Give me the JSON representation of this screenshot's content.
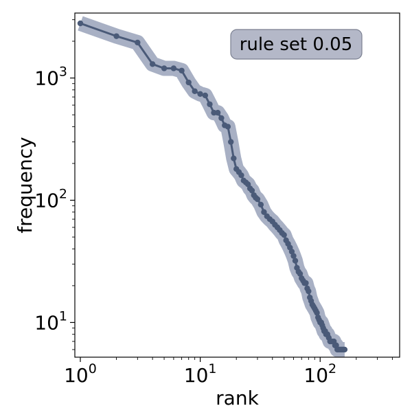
{
  "chart_data": {
    "type": "line",
    "xscale": "log",
    "yscale": "log",
    "xlabel": "rank",
    "ylabel": "frequency",
    "xlim": [
      0.9,
      460
    ],
    "ylim": [
      5.2,
      3400
    ],
    "x_ticks": [
      {
        "value": 1,
        "base": "10",
        "exp": "0"
      },
      {
        "value": 10,
        "base": "10",
        "exp": "1"
      },
      {
        "value": 100,
        "base": "10",
        "exp": "2"
      }
    ],
    "y_ticks": [
      {
        "value": 10,
        "base": "10",
        "exp": "1"
      },
      {
        "value": 100,
        "base": "10",
        "exp": "2"
      },
      {
        "value": 1000,
        "base": "10",
        "exp": "3"
      }
    ],
    "grid": false,
    "annotation": "rule set 0.05",
    "colors": {
      "line": "#4a5a78",
      "halo": "#a8b0c4",
      "box_fill": "#b4b8c8",
      "box_edge": "#7a7f90"
    },
    "series": [
      {
        "x": [
          1,
          2,
          3,
          4,
          5,
          6,
          7,
          8,
          9,
          10,
          11,
          12,
          13,
          14,
          15,
          16,
          17,
          18,
          19,
          20,
          21,
          22,
          23,
          24,
          25,
          26,
          27,
          28,
          29,
          30,
          32,
          34,
          36,
          38,
          40,
          42,
          44,
          46,
          48,
          50,
          52,
          54,
          56,
          58,
          60,
          62,
          64,
          66,
          68,
          70,
          72,
          74,
          76,
          78,
          80,
          82,
          84,
          86,
          88,
          90,
          92,
          94,
          96,
          98,
          100,
          102,
          104,
          106,
          108,
          110,
          112,
          115,
          118,
          121,
          124,
          127,
          130,
          133,
          136,
          139,
          142,
          145,
          148,
          151,
          154,
          157,
          160
        ],
        "y": [
          2800,
          2200,
          1950,
          1300,
          1200,
          1200,
          1150,
          920,
          780,
          740,
          720,
          610,
          520,
          520,
          470,
          410,
          400,
          300,
          220,
          180,
          170,
          160,
          145,
          140,
          135,
          125,
          120,
          110,
          105,
          102,
          92,
          80,
          74,
          70,
          67,
          63,
          60,
          57,
          54,
          52,
          47,
          44,
          41,
          38,
          35,
          32,
          28,
          26,
          25,
          23,
          22,
          21,
          21,
          19,
          18,
          16,
          15,
          14,
          13.5,
          13,
          12.5,
          12,
          11,
          10.5,
          10,
          10,
          9.5,
          9,
          8.5,
          8.5,
          8,
          8,
          7.5,
          7,
          7,
          7,
          7,
          6.5,
          6.5,
          6,
          6,
          6,
          6,
          6,
          6,
          6,
          6
        ]
      }
    ]
  }
}
